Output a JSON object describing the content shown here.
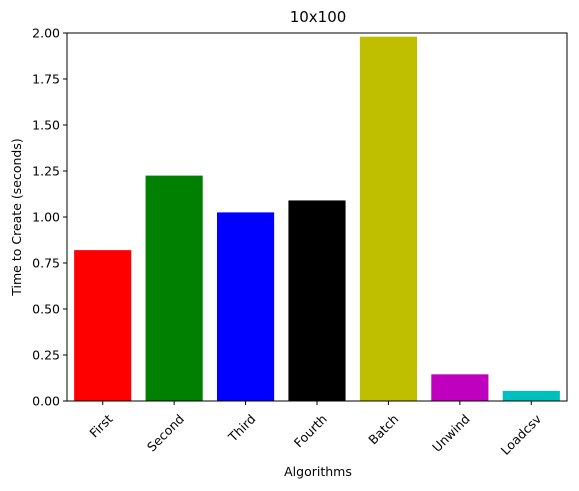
{
  "chart_data": {
    "type": "bar",
    "title": "10x100",
    "xlabel": "Algorithms",
    "ylabel": "Time to Create (seconds)",
    "categories": [
      "First",
      "Second",
      "Third",
      "Fourth",
      "Batch",
      "Unwind",
      "Loadcsv"
    ],
    "values": [
      0.82,
      1.225,
      1.025,
      1.09,
      1.98,
      0.145,
      0.055
    ],
    "colors": [
      "#ff0000",
      "#008000",
      "#0000ff",
      "#000000",
      "#bfbf00",
      "#bf00bf",
      "#00bfbf"
    ],
    "ylim": [
      0,
      2.0
    ],
    "yticks": [
      "0.00",
      "0.25",
      "0.50",
      "0.75",
      "1.00",
      "1.25",
      "1.50",
      "1.75",
      "2.00"
    ],
    "grid": false,
    "legend": "none"
  }
}
